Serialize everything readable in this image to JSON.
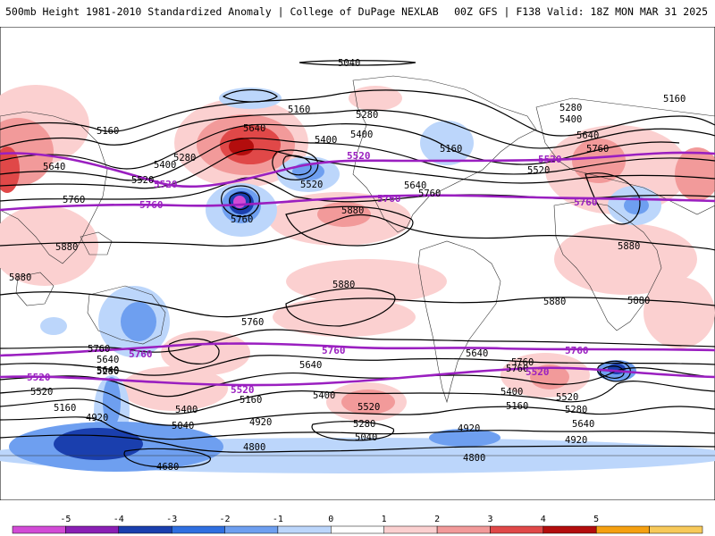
{
  "header": {
    "left": "500mb Height 1981-2010 Standardized Anomaly | College of DuPage NEXLAB",
    "right": "00Z GFS | F138 Valid: 18Z MON MAR 31 2025"
  },
  "colorbar": {
    "ticks": [
      "-5",
      "-4",
      "-3",
      "-2",
      "-1",
      "0",
      "1",
      "2",
      "3",
      "4",
      "5"
    ],
    "colors": [
      "#d24bd6",
      "#8a1fb4",
      "#1a3fae",
      "#2f6fe0",
      "#6e9ff0",
      "#bcd6fb",
      "#ffffff",
      "#fbd0d0",
      "#f29a9a",
      "#e04848",
      "#b30d0d",
      "#f5a011",
      "#f7c95a"
    ]
  },
  "map": {
    "ocean_color": "#ffffff",
    "purple_line_color": "#9a1fc0",
    "labels": {
      "c5040": "5040",
      "c5160a": "5160",
      "c5160b": "5160",
      "c5160c": "5160",
      "c5160d": "5160",
      "c5160e": "5160",
      "c5280a": "5280",
      "c5280b": "5280",
      "c5280c": "5280",
      "c5280d": "5280",
      "c5280e": "5280",
      "c5400a": "5400",
      "c5400b": "5400",
      "c5400c": "5400",
      "c5400d": "5400",
      "c5400e": "5400",
      "c5400f": "5400",
      "c5400g": "5400",
      "c5520a": "5520",
      "c5520b": "5520",
      "c5520c": "5520",
      "c5520d": "5520",
      "c5640a": "5640",
      "c5640b": "5640",
      "c5640c": "5640",
      "c5640d": "5640",
      "c5640e": "5640",
      "c5640f": "5640",
      "c5760a": "5760",
      "c5760b": "5760",
      "c5760c": "5760",
      "c5760d": "5760",
      "c5760e": "5760",
      "c5760f": "5760",
      "c5880a": "5880",
      "c5880b": "5880",
      "c5880c": "5880",
      "c5880d": "5880",
      "c5880e": "5880",
      "c5880f": "5880",
      "c5880g": "5880",
      "c5520s1": "5520",
      "c5520s2": "5520",
      "c5400s1": "5400",
      "c5400s2": "5400",
      "c5400s3": "5400",
      "c5280s1": "5280",
      "c5280s2": "5280",
      "c5160s1": "5160",
      "c5160s2": "5160",
      "c5040s1": "5040",
      "c5040s2": "5040",
      "c4920s1": "4920",
      "c4920s2": "4920",
      "c4920s3": "4920",
      "c4920s4": "4920",
      "c4800s1": "4800",
      "c4800s2": "4800",
      "c4680s1": "4680",
      "c5640s1": "5640",
      "c5640s2": "5640",
      "c5640s3": "5640",
      "c5760s1": "5760",
      "c5760s2": "5760",
      "p5520n1": "5520",
      "p5520n2": "5520",
      "p5520n3": "5520",
      "p5760n1": "5760",
      "p5760n2": "5760",
      "p5760n3": "5760",
      "p5760s1": "5760",
      "p5760s2": "5760",
      "p5760s3": "5760",
      "p5520s1": "5520",
      "p5520s2": "5520",
      "p5520s3": "5520"
    }
  }
}
